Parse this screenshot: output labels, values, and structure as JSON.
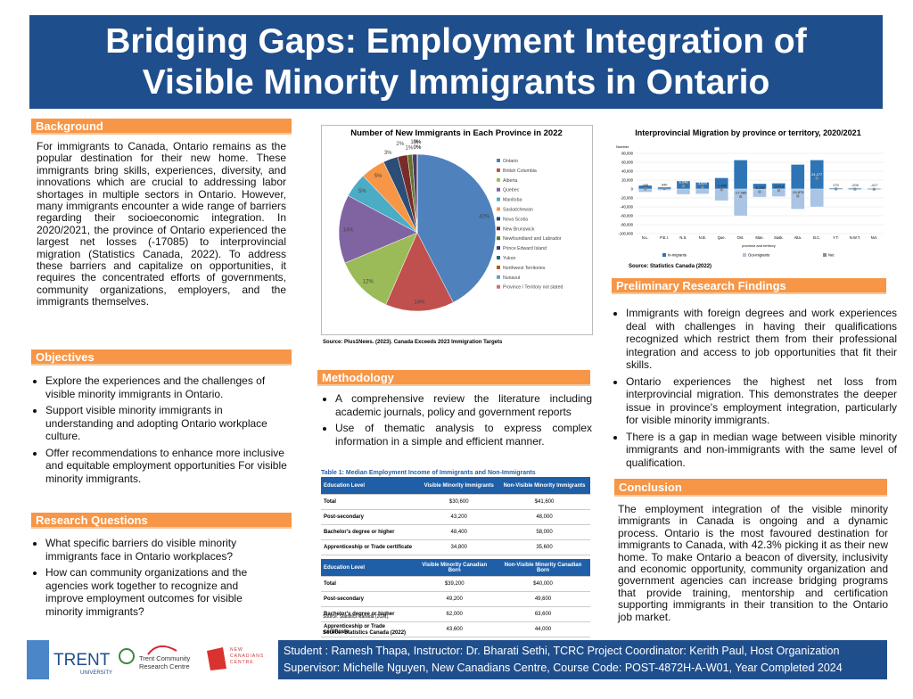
{
  "title": "Bridging Gaps: Employment Integration of Visible Minority Immigrants in Ontario",
  "background": {
    "heading": "Background",
    "text": "For immigrants to Canada, Ontario remains as the popular destination for their new home. These immigrants bring skills, experiences, diversity, and innovations which are crucial to addressing labor shortages in multiple sectors in Ontario. However, many immigrants encounter a wide range of barriers regarding their socioeconomic integration. In 2020/2021, the province of Ontario experienced the largest net losses (-17085) to interprovincial migration (Statistics Canada, 2022). To address these barriers and capitalize on opportunities, it requires the concentrated efforts of governments, community organizations, employers, and the immigrants themselves."
  },
  "objectives": {
    "heading": "Objectives",
    "items": [
      "Explore the experiences and the challenges of visible minority immigrants in Ontario.",
      "Support visible minority immigrants in understanding and adopting Ontario workplace culture.",
      "Offer recommendations to enhance more inclusive and  equitable employment opportunities For visible minority immigrants."
    ]
  },
  "research_questions": {
    "heading": "Research Questions",
    "items": [
      "What specific barriers do visible minority immigrants face in Ontario workplaces?",
      "How can community organizations and the agencies work together to recognize and improve employment outcomes for visible minority immigrants?"
    ]
  },
  "pie_source": "Source: Plus1News. (2023). Canada Exceeds 2023 Immigration Targets",
  "methodology": {
    "heading": "Methodology",
    "items": [
      "A comprehensive review the literature including academic journals, policy and government reports",
      "Use of thematic analysis to express complex information in a simple and efficient manner."
    ]
  },
  "table": {
    "caption": "Table 1: Median Employment Income of Immigrants and Non-Immigrants",
    "parts": [
      {
        "header": [
          "Education Level",
          "Visible Minority Immigrants",
          "Non-Visible Minority Immigrants"
        ],
        "rows": [
          [
            "Total",
            "$30,600",
            "$41,600"
          ],
          [
            "Post-secondary",
            "43,200",
            "48,000"
          ],
          [
            "Bachelor's degree or higher",
            "48,400",
            "58,000"
          ],
          [
            "Apprenticeship or Trade certificate",
            "34,800",
            "35,600"
          ]
        ]
      },
      {
        "header": [
          "Education Level",
          "Visible Minority Canadian Born",
          "Non-Visible Minority Canadian Born"
        ],
        "rows": [
          [
            "Total",
            "$39,200",
            "$40,000"
          ],
          [
            "Post-secondary",
            "49,200",
            "49,600"
          ],
          [
            "Bachelor's degree or higher",
            "62,000",
            "63,600"
          ],
          [
            "Apprenticeship or Trade certificate",
            "43,600",
            "44,000"
          ]
        ]
      }
    ],
    "note": "Source: Statistics Canada (2021).",
    "source": "Source: Statistics Canada (2022)"
  },
  "bar_source": "Source: Statistics Canada (2022)",
  "findings": {
    "heading": "Preliminary Research Findings",
    "items": [
      "Immigrants with foreign degrees and work experiences deal with challenges in having their qualifications recognized which restrict them from their professional integration and access to job opportunities that fit their skills.",
      "Ontario experiences the highest net loss from interprovincial migration. This demonstrates the deeper issue in province's employment integration, particularly for visible minority immigrants.",
      "There is a gap in median wage between visible minority immigrants and non-immigrants with the same level of qualification."
    ]
  },
  "conclusion": {
    "heading": "Conclusion",
    "text": "The employment integration of the visible minority immigrants in Canada is ongoing and a dynamic process. Ontario is the most favoured destination for immigrants to Canada, with 42.3% picking it as their new home. To make Ontario a beacon of diversity, inclusivity and economic opportunity, community organization and government agencies can increase bridging programs that provide training, mentorship and certification supporting immigrants in their transition to the Ontario job market."
  },
  "logos": {
    "trent": "TRENT",
    "trent_sub": "UNIVERSITY",
    "tcrc": "Trent Community Research Centre",
    "ncc": "NEW CANADIANS CENTRE"
  },
  "footer": "Student : Ramesh Thapa, Instructor: Dr. Bharati Sethi,  TCRC Project Coordinator: Kerith Paul, Host Organization Supervisor: Michelle Nguyen, New Canadians Centre, Course Code: POST-4872H-A-W01, Year Completed 2024",
  "chart_data": [
    {
      "type": "pie",
      "title": "Number of New Immigrants in Each Province in 2022",
      "categories": [
        "Ontario",
        "British Columbia",
        "Alberta",
        "Quebec",
        "Manitoba",
        "Saskatchewan",
        "Nova Scotia",
        "New Brunswick",
        "Newfoundland and Labrador",
        "Prince Edward Island",
        "Yukon",
        "Northwest Territories",
        "Nunavut",
        "Province / Territory not stated"
      ],
      "values": [
        42,
        14,
        12,
        14,
        5,
        5,
        3,
        2,
        1,
        1,
        0,
        0,
        0,
        0
      ],
      "value_labels": [
        "42%",
        "14%",
        "12%",
        "14%",
        "5%",
        "5%",
        "3%",
        "2%",
        "1%",
        "1%",
        "0%",
        "0%",
        "0%",
        "0%"
      ],
      "colors": [
        "#4f81bd",
        "#c0504d",
        "#9bbb59",
        "#8064a2",
        "#4bacc6",
        "#f79646",
        "#2c4d75",
        "#772c2a",
        "#5f7530",
        "#4d3b62",
        "#276a7c",
        "#b65708",
        "#729aca",
        "#cd7371"
      ]
    },
    {
      "type": "bar",
      "title": "Interprovincial Migration by province or territory, 2020/2021",
      "y_label": "Number",
      "x_label": "province and territory",
      "categories": [
        "N.L.",
        "P.E.I.",
        "N.S.",
        "N.B.",
        "Que.",
        "Ont.",
        "Man.",
        "Sask.",
        "Alta.",
        "B.C.",
        "Y.T.",
        "N.W.T.",
        "Nvt."
      ],
      "series": [
        {
          "name": "In-migrants",
          "color": "#2e75b6",
          "values": [
            8000,
            4000,
            18000,
            15000,
            25000,
            65000,
            12000,
            13000,
            55000,
            65000,
            2000,
            2000,
            1500
          ]
        },
        {
          "name": "Out-migrants",
          "color": "#a9c4e4",
          "values": [
            -7000,
            -3000,
            -12000,
            -11000,
            -26000,
            -60000,
            -18000,
            -17000,
            -45000,
            -40000,
            -1700,
            -2000,
            -2000
          ]
        },
        {
          "name": "Net",
          "color": "#8c8c8c",
          "values": [
            285,
            940,
            6548,
            3820,
            -1486,
            -17085,
            -6258,
            -3413,
            -15879,
            24277,
            270,
            -200,
            -417
          ],
          "value_labels": [
            "285",
            "940",
            "6,548",
            "3,820",
            "-1,486",
            "-17,085",
            "-6,258",
            "-3,413",
            "-15,879",
            "24,277",
            "270",
            "-200",
            "-417"
          ]
        }
      ],
      "ylim": [
        -100000,
        80000
      ],
      "yticks": [
        {
          "value": -100000,
          "label": "-100,000"
        },
        {
          "value": -80000,
          "label": "-80,000"
        },
        {
          "value": -60000,
          "label": "-60,000"
        },
        {
          "value": -40000,
          "label": "-40,000"
        },
        {
          "value": -20000,
          "label": "-20,000"
        },
        0,
        {
          "value": 20000,
          "label": "20,000"
        },
        {
          "value": 40000,
          "label": "40,000"
        },
        {
          "value": 60000,
          "label": "60,000"
        },
        {
          "value": 80000,
          "label": "80,000"
        }
      ],
      "grid": true
    }
  ]
}
